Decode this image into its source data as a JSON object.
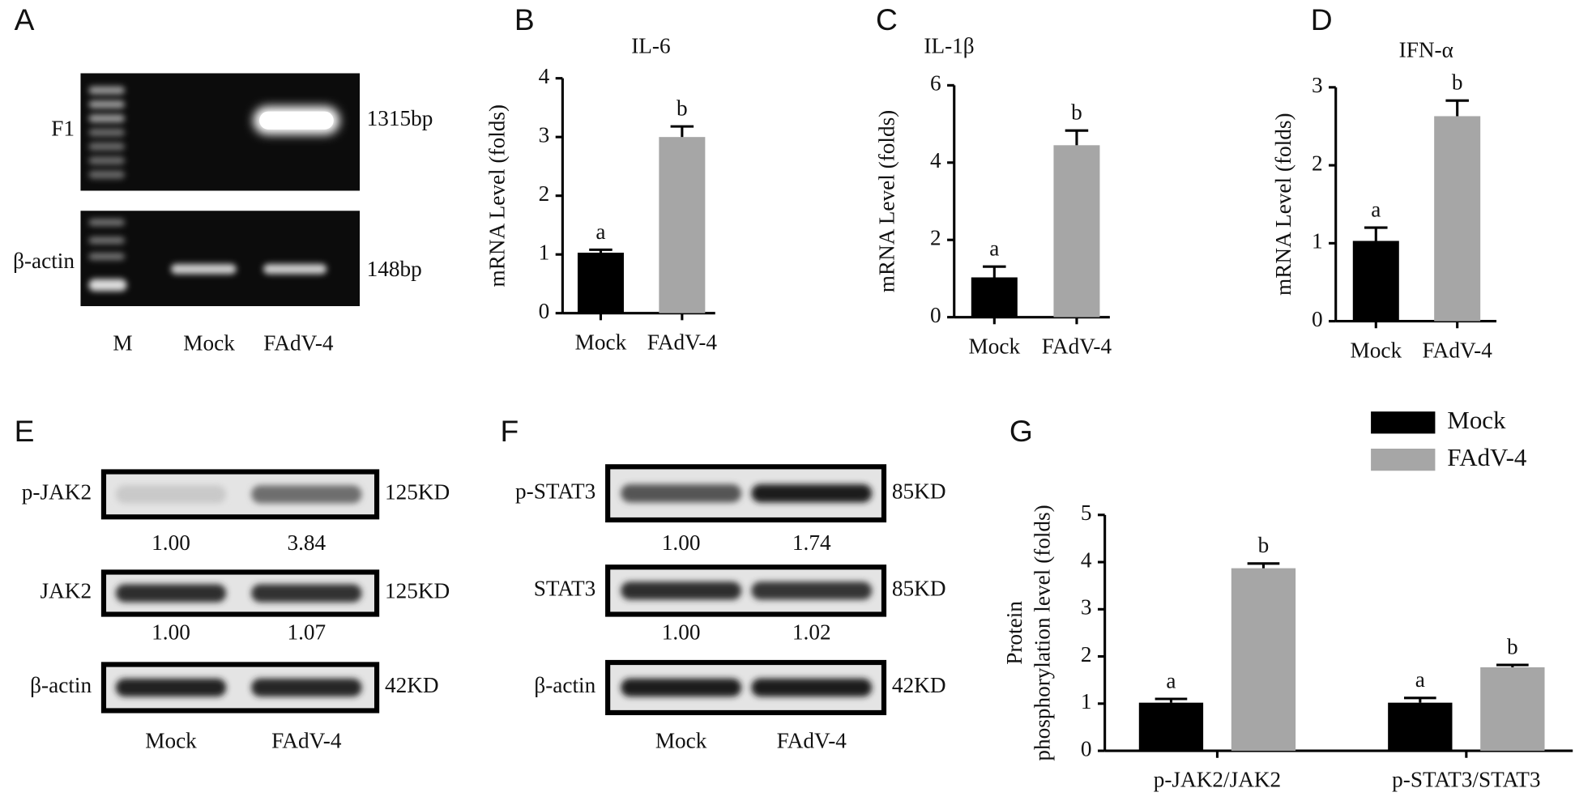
{
  "panel_letters": [
    "A",
    "B",
    "C",
    "D",
    "E",
    "F",
    "G"
  ],
  "gel": {
    "lanes": [
      "M",
      "Mock",
      "FAdV-4"
    ],
    "rows": [
      {
        "label": "F1",
        "size": "1315bp"
      },
      {
        "label": "β-actin",
        "size": "148bp"
      }
    ]
  },
  "blots": [
    {
      "lanes": [
        "Mock",
        "FAdV-4"
      ],
      "rows": [
        {
          "label": "p-JAK2",
          "size": "125KD",
          "quant": [
            "1.00",
            "3.84"
          ]
        },
        {
          "label": "JAK2",
          "size": "125KD",
          "quant": [
            "1.00",
            "1.07"
          ]
        },
        {
          "label": "β-actin",
          "size": "42KD"
        }
      ]
    },
    {
      "lanes": [
        "Mock",
        "FAdV-4"
      ],
      "rows": [
        {
          "label": "p-STAT3",
          "size": "85KD",
          "quant": [
            "1.00",
            "1.74"
          ]
        },
        {
          "label": "STAT3",
          "size": "85KD",
          "quant": [
            "1.00",
            "1.02"
          ]
        },
        {
          "label": "β-actin",
          "size": "42KD"
        }
      ]
    }
  ],
  "chart_data": [
    {
      "type": "bar",
      "title": "IL-6",
      "ylabel": "mRNA  Level (folds)",
      "categories": [
        "Mock",
        "FAdV-4"
      ],
      "values": [
        1.03,
        3.0
      ],
      "errors": [
        0.05,
        0.18
      ],
      "annotations": [
        "a",
        "b"
      ],
      "colors": [
        "#000000",
        "#a6a6a6"
      ],
      "ylim": [
        0,
        4
      ],
      "yticks": [
        0,
        1,
        2,
        3,
        4
      ]
    },
    {
      "type": "bar",
      "title": "IL-1β",
      "ylabel": "mRNA  Level (folds)",
      "categories": [
        "Mock",
        "FAdV-4"
      ],
      "values": [
        1.03,
        4.45
      ],
      "errors": [
        0.28,
        0.38
      ],
      "annotations": [
        "a",
        "b"
      ],
      "colors": [
        "#000000",
        "#a6a6a6"
      ],
      "ylim": [
        0,
        6
      ],
      "yticks": [
        0,
        2,
        4,
        6
      ]
    },
    {
      "type": "bar",
      "title": "IFN-α",
      "ylabel": "mRNA  Level (folds)",
      "categories": [
        "Mock",
        "FAdV-4"
      ],
      "values": [
        1.03,
        2.63
      ],
      "errors": [
        0.17,
        0.2
      ],
      "annotations": [
        "a",
        "b"
      ],
      "colors": [
        "#000000",
        "#a6a6a6"
      ],
      "ylim": [
        0,
        3
      ],
      "yticks": [
        0,
        1,
        2,
        3
      ]
    },
    {
      "type": "grouped_bar",
      "ylabel": [
        "Protein",
        "phosphorylation level (folds)"
      ],
      "categories": [
        "p-JAK2/JAK2",
        "p-STAT3/STAT3"
      ],
      "series": [
        {
          "name": "Mock",
          "color": "#000000",
          "values": [
            1.02,
            1.02
          ],
          "errors": [
            0.08,
            0.1
          ],
          "annotations": [
            "a",
            "a"
          ]
        },
        {
          "name": "FAdV-4",
          "color": "#a6a6a6",
          "values": [
            3.87,
            1.77
          ],
          "errors": [
            0.1,
            0.05
          ],
          "annotations": [
            "b",
            "b"
          ]
        }
      ],
      "ylim": [
        0,
        5
      ],
      "yticks": [
        0,
        1,
        2,
        3,
        4,
        5
      ],
      "legend": "top-right"
    }
  ]
}
